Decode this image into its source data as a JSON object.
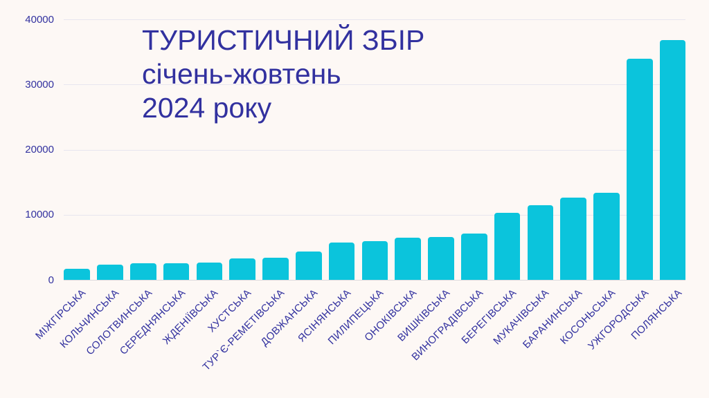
{
  "title": {
    "line1": "ТУРИСТИЧНИЙ ЗБІР",
    "line2": "січень-жовтень",
    "line3": "2024 року"
  },
  "colors": {
    "background": "#FDF8F5",
    "bar": "#0BC4DC",
    "text": "#32319F",
    "gridline": "#E7E5EF",
    "baseline": "#DCD9DC"
  },
  "chart_data": {
    "type": "bar",
    "title": "ТУРИСТИЧНИЙ ЗБІР січень-жовтень 2024 року",
    "xlabel": "",
    "ylabel": "",
    "ylim": [
      0,
      40000
    ],
    "yticks": [
      0,
      10000,
      20000,
      30000,
      40000
    ],
    "grid": true,
    "legend": false,
    "bar_color": "#0BC4DC",
    "categories": [
      "МІЖГІРСЬКА",
      "КОЛЬЧИНСЬКА",
      "СОЛОТВИНСЬКА",
      "СЕРЕДНЯНСЬКА",
      "ЖДЕНІЇВСЬКА",
      "ХУСТСЬКА",
      "ТУР`Є-РЕМЕТІВСЬКА",
      "ДОВЖАНСЬКА",
      "ЯСІНЯНСЬКА",
      "ПИЛИПЕЦЬКА",
      "ОНОКІВСЬКА",
      "ВИШКІВСЬКА",
      "ВИНОГРАДІВСЬКА",
      "БЕРЕГІВСЬКА",
      "МУКАЧІВСЬКА",
      "БАРАНИНСЬКА",
      "КОСОНЬСЬКА",
      "УЖГОРОДСЬКА",
      "ПОЛЯНСЬКА"
    ],
    "values": [
      1700,
      2350,
      2500,
      2550,
      2700,
      3300,
      3400,
      4300,
      5750,
      5900,
      6450,
      6550,
      7100,
      10250,
      11450,
      12600,
      13400,
      33900,
      36800
    ]
  }
}
